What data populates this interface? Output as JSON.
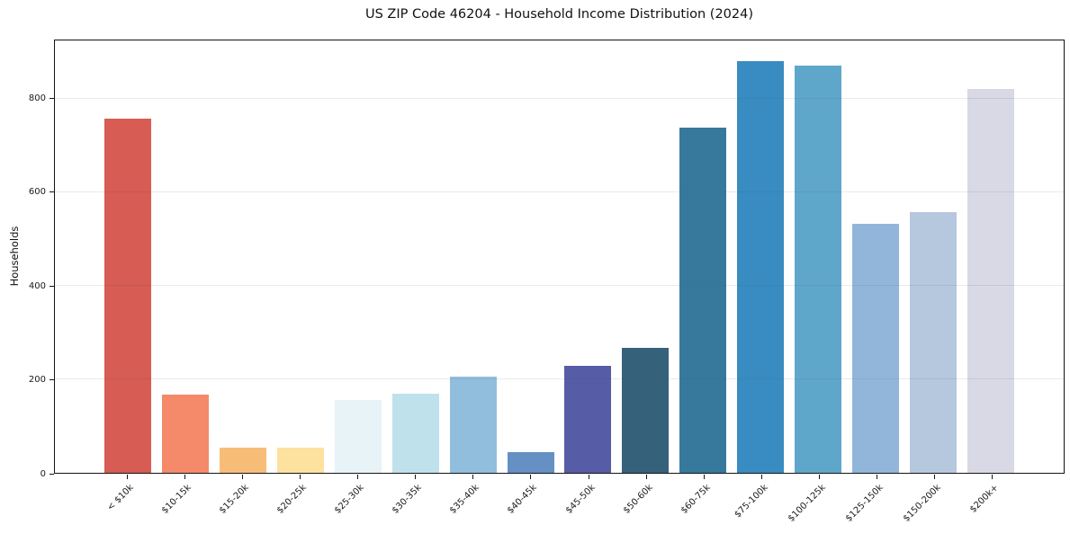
{
  "figure": {
    "background_color": "#ffffff",
    "spine_color": "#151515",
    "grid_color": "rgba(80,80,80,0.12)"
  },
  "chart_data": {
    "type": "bar",
    "title": "US ZIP Code 46204 - Household Income Distribution (2024)",
    "xlabel": "",
    "ylabel": "Households",
    "categories": [
      "< $10k",
      "$10-15k",
      "$15-20k",
      "$20-25k",
      "$25-30k",
      "$30-35k",
      "$35-40k",
      "$40-45k",
      "$45-50k",
      "$50-60k",
      "$60-75k",
      "$75-100k",
      "$100-125k",
      "$125-150k",
      "$150-200k",
      "$200k+"
    ],
    "values": [
      757,
      167,
      54,
      54,
      155,
      169,
      206,
      44,
      228,
      267,
      738,
      880,
      870,
      532,
      558,
      820
    ],
    "bar_colors": [
      "#d65c54",
      "#f48a6a",
      "#f7bd78",
      "#fce29e",
      "#e7f3f6",
      "#bfe1ec",
      "#92bedd",
      "#6490c4",
      "#565ca6",
      "#36617a",
      "#37799d",
      "#398cc1",
      "#5ea7cb",
      "#92b6da",
      "#b6c8de",
      "#d8d9e5"
    ],
    "yticks": [
      0,
      200,
      400,
      600,
      800
    ],
    "ylim": [
      0,
      924
    ],
    "grid": "horizontal-only",
    "legend": "none",
    "xtick_rotation": 45
  }
}
